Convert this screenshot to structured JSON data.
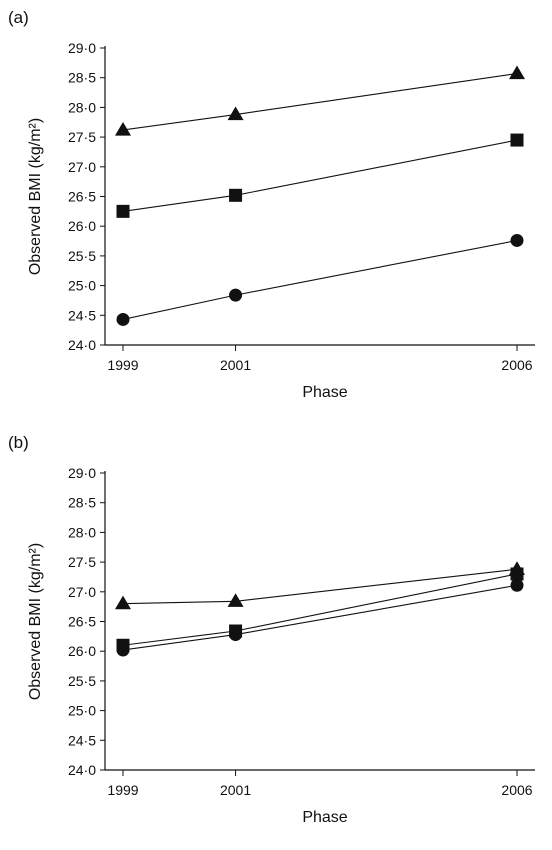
{
  "panels": [
    {
      "label": "(a)"
    },
    {
      "label": "(b)"
    }
  ],
  "chart_data": [
    {
      "type": "line",
      "panel": "(a)",
      "xlabel": "Phase",
      "ylabel": "Observed BMI (kg/m²)",
      "x": [
        1999,
        2001,
        2006
      ],
      "x_tick_labels": [
        "1999",
        "2001",
        "2006"
      ],
      "ylim": [
        24.0,
        29.0
      ],
      "y_ticks": [
        "24·0",
        "24·5",
        "25·0",
        "25·5",
        "26·0",
        "26·5",
        "27·0",
        "27·5",
        "28·0",
        "28·5",
        "29·0"
      ],
      "grid": false,
      "series": [
        {
          "marker": "triangle",
          "values": [
            27.62,
            27.88,
            28.57
          ]
        },
        {
          "marker": "square",
          "values": [
            26.25,
            26.52,
            27.45
          ]
        },
        {
          "marker": "circle",
          "values": [
            24.43,
            24.84,
            25.76
          ]
        }
      ]
    },
    {
      "type": "line",
      "panel": "(b)",
      "xlabel": "Phase",
      "ylabel": "Observed BMI (kg/m²)",
      "x": [
        1999,
        2001,
        2006
      ],
      "x_tick_labels": [
        "1999",
        "2001",
        "2006"
      ],
      "ylim": [
        24.0,
        29.0
      ],
      "y_ticks": [
        "24·0",
        "24·5",
        "25·0",
        "25·5",
        "26·0",
        "26·5",
        "27·0",
        "27·5",
        "28·0",
        "28·5",
        "29·0"
      ],
      "grid": false,
      "series": [
        {
          "marker": "triangle",
          "values": [
            26.8,
            26.84,
            27.38
          ]
        },
        {
          "marker": "square",
          "values": [
            26.1,
            26.34,
            27.3
          ]
        },
        {
          "marker": "circle",
          "values": [
            26.02,
            26.28,
            27.11
          ]
        }
      ]
    }
  ]
}
